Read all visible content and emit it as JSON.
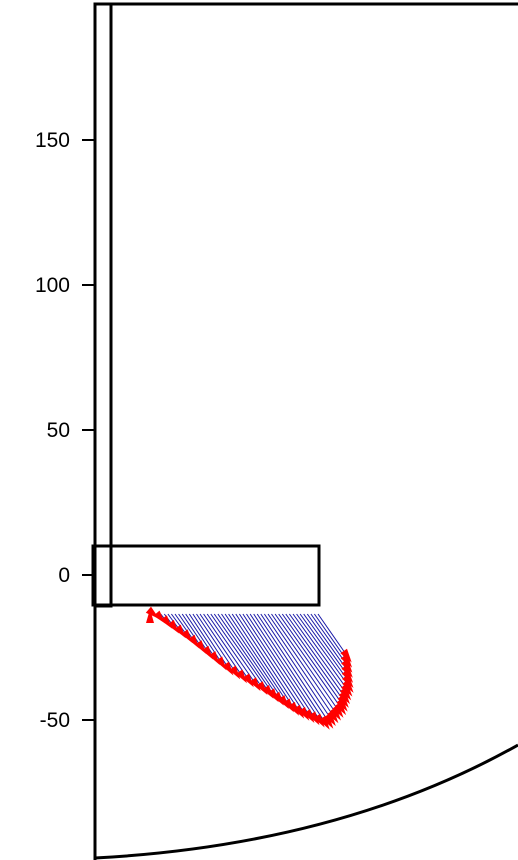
{
  "chart_data": {
    "type": "diagram",
    "title": "",
    "xlabel": "",
    "ylabel": "",
    "y_ticks": [
      150,
      100,
      50,
      0,
      -50
    ],
    "y_tick_labels": [
      "150",
      "100",
      "50",
      "0",
      "-50"
    ],
    "ylim": [
      -96,
      196
    ],
    "grid": false,
    "legend": "none",
    "colors": {
      "structure": "#000000",
      "vector_lines": "#1a1aa8",
      "arrow_heads": "#ff0000",
      "background": "#ffffff"
    }
  }
}
